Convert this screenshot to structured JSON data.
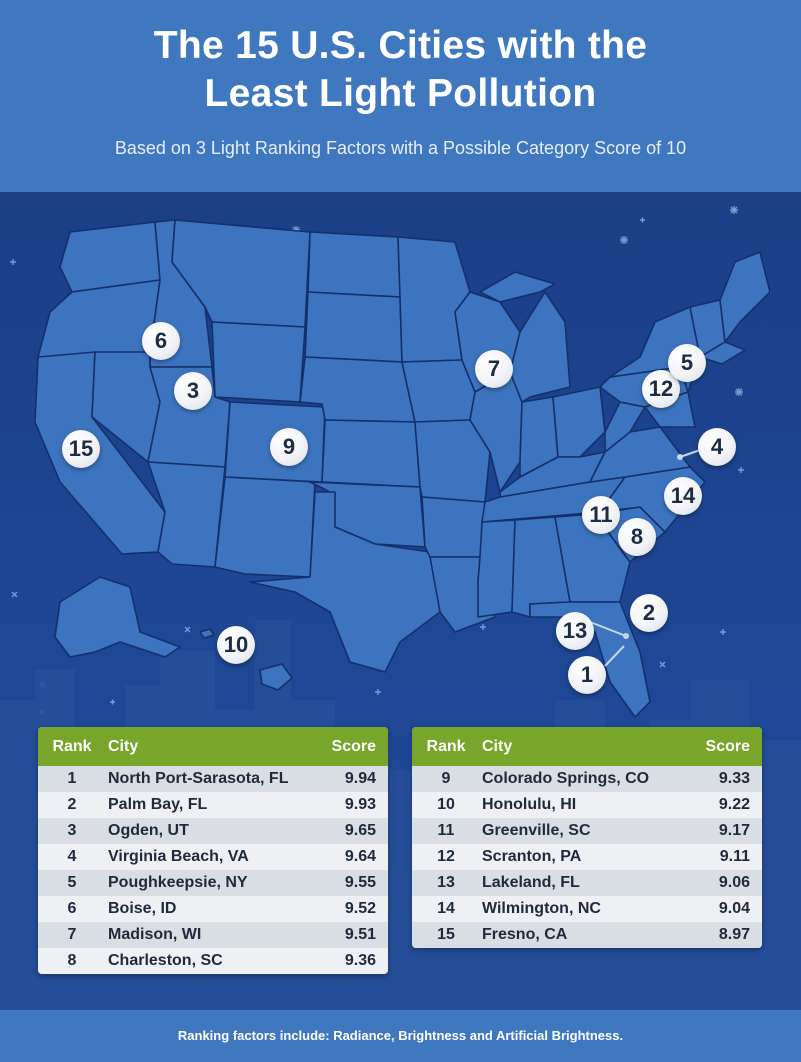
{
  "header": {
    "title_line1": "The 15 U.S. Cities with the",
    "title_line2": "Least Light Pollution",
    "subtitle": "Based on 3 Light Ranking Factors with a Possible Category Score of 10"
  },
  "colors": {
    "header_bg": "#4078bf",
    "sky": "#1e4794",
    "state_fill": "#3d74bf",
    "table_header": "#77a62a"
  },
  "map_markers": [
    "6",
    "3",
    "15",
    "9",
    "10",
    "7",
    "12",
    "5",
    "4",
    "14",
    "11",
    "8",
    "2",
    "13",
    "1"
  ],
  "table": {
    "columns": {
      "rank": "Rank",
      "city": "City",
      "score": "Score"
    },
    "left_rows": [
      {
        "rank": "1",
        "city": "North Port-Sarasota, FL",
        "score": "9.94"
      },
      {
        "rank": "2",
        "city": "Palm Bay, FL",
        "score": "9.93"
      },
      {
        "rank": "3",
        "city": "Ogden, UT",
        "score": "9.65"
      },
      {
        "rank": "4",
        "city": "Virginia Beach, VA",
        "score": "9.64"
      },
      {
        "rank": "5",
        "city": "Poughkeepsie, NY",
        "score": "9.55"
      },
      {
        "rank": "6",
        "city": "Boise, ID",
        "score": "9.52"
      },
      {
        "rank": "7",
        "city": "Madison, WI",
        "score": "9.51"
      },
      {
        "rank": "8",
        "city": "Charleston, SC",
        "score": "9.36"
      }
    ],
    "right_rows": [
      {
        "rank": "9",
        "city": "Colorado Springs, CO",
        "score": "9.33"
      },
      {
        "rank": "10",
        "city": "Honolulu, HI",
        "score": "9.22"
      },
      {
        "rank": "11",
        "city": "Greenville, SC",
        "score": "9.17"
      },
      {
        "rank": "12",
        "city": "Scranton, PA",
        "score": "9.11"
      },
      {
        "rank": "13",
        "city": "Lakeland, FL",
        "score": "9.06"
      },
      {
        "rank": "14",
        "city": "Wilmington, NC",
        "score": "9.04"
      },
      {
        "rank": "15",
        "city": "Fresno, CA",
        "score": "8.97"
      }
    ]
  },
  "footer": {
    "note": "Ranking factors include: Radiance, Brightness and Artificial Brightness."
  }
}
